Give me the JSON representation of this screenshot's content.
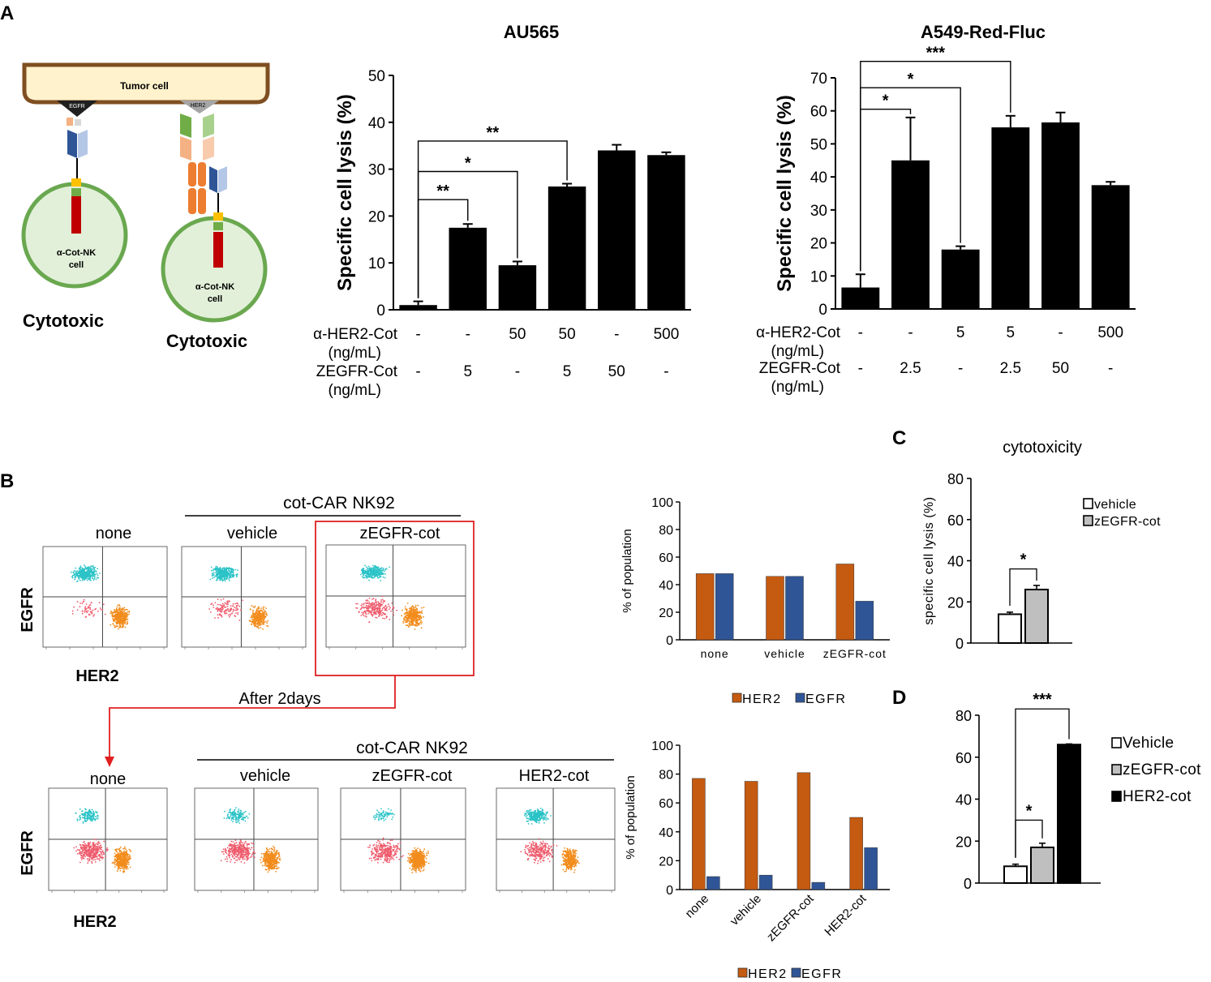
{
  "panels": {
    "A": "A",
    "B": "B",
    "C": "C",
    "D": "D"
  },
  "schematic": {
    "tumor_label": "Tumor cell",
    "egfr_label": "EGFR",
    "her2_label": "HER2",
    "cell_line1": "α-Cot-NK",
    "cell_line2": "cell",
    "cytotoxic": "Cytotoxic"
  },
  "flow": {
    "cot_car": "cot-CAR NK92",
    "none": "none",
    "vehicle": "vehicle",
    "zegfr": "zEGFR-cot",
    "her2cot": "HER2-cot",
    "egfr_axis": "EGFR",
    "her2_axis": "HER2",
    "after": "After 2days"
  },
  "chart_data": [
    {
      "id": "au565",
      "type": "bar",
      "title": "AU565",
      "ylabel": "Specific cell lysis (%)",
      "ylim": [
        0,
        50
      ],
      "yticks": [
        0,
        10,
        20,
        30,
        40,
        50
      ],
      "values": [
        1,
        17.5,
        9.5,
        26.3,
        34,
        33
      ],
      "errors": [
        0.8,
        0.8,
        0.8,
        0.6,
        1.2,
        0.6
      ],
      "row1_label": [
        "α-HER2-Cot",
        "(ng/mL)"
      ],
      "row1": [
        "-",
        "-",
        "50",
        "50",
        "-",
        "500"
      ],
      "row2_label": [
        "ZEGFR-Cot",
        "(ng/mL)"
      ],
      "row2": [
        "-",
        "5",
        "-",
        "5",
        "50",
        "-"
      ],
      "sig": [
        {
          "from": 0,
          "to": 1,
          "label": "**",
          "level": 23.5
        },
        {
          "from": 0,
          "to": 2,
          "label": "*",
          "level": 29.5
        },
        {
          "from": 0,
          "to": 3,
          "label": "**",
          "level": 36
        }
      ]
    },
    {
      "id": "a549",
      "type": "bar",
      "title": "A549-Red-Fluc",
      "ylabel": "Specific cell lysis (%)",
      "ylim": [
        0,
        70
      ],
      "yticks": [
        0,
        10,
        20,
        30,
        40,
        50,
        60,
        70
      ],
      "values": [
        6.5,
        45,
        18,
        55,
        56.5,
        37.5
      ],
      "errors": [
        4,
        13,
        1,
        3.5,
        3,
        1
      ],
      "row1_label": [
        "α-HER2-Cot",
        "(ng/mL)"
      ],
      "row1": [
        "-",
        "-",
        "5",
        "5",
        "-",
        "500"
      ],
      "row2_label": [
        "ZEGFR-Cot",
        "(ng/mL)"
      ],
      "row2": [
        "-",
        "2.5",
        "-",
        "2.5",
        "50",
        "-"
      ],
      "sig": [
        {
          "from": 0,
          "to": 1,
          "label": "*",
          "level": 60.5
        },
        {
          "from": 0,
          "to": 2,
          "label": "*",
          "level": 67
        },
        {
          "from": 0,
          "to": 3,
          "label": "***",
          "level": 75
        }
      ]
    },
    {
      "id": "b_top",
      "type": "bar",
      "title": "",
      "ylabel": "% of population",
      "ylim": [
        0,
        100
      ],
      "yticks": [
        0,
        20,
        40,
        60,
        80,
        100
      ],
      "categories": [
        "none",
        "vehicle",
        "zEGFR-cot"
      ],
      "series": [
        {
          "name": "HER2",
          "color": "#c55a11",
          "values": [
            48,
            46,
            55
          ]
        },
        {
          "name": "EGFR",
          "color": "#2f5597",
          "values": [
            48,
            46,
            28
          ]
        }
      ]
    },
    {
      "id": "b_bottom",
      "type": "bar",
      "title": "",
      "ylabel": "% of population",
      "ylim": [
        0,
        100
      ],
      "yticks": [
        0,
        20,
        40,
        60,
        80,
        100
      ],
      "categories": [
        "none",
        "vehicle",
        "zEGFR-cot",
        "HER2-cot"
      ],
      "series": [
        {
          "name": "HER2",
          "color": "#c55a11",
          "values": [
            77,
            75,
            81,
            50
          ]
        },
        {
          "name": "EGFR",
          "color": "#2f5597",
          "values": [
            9,
            10,
            5,
            29
          ]
        }
      ]
    },
    {
      "id": "c",
      "type": "bar",
      "title": "cytotoxicity",
      "ylabel": "specific cell lysis (%)",
      "ylim": [
        0,
        80
      ],
      "yticks": [
        0,
        20,
        40,
        60,
        80
      ],
      "series": [
        {
          "name": "vehicle",
          "color": "#ffffff",
          "value": 14,
          "error": 1
        },
        {
          "name": "zEGFR-cot",
          "color": "#bfbfbf",
          "value": 26,
          "error": 2
        }
      ],
      "sig": [
        {
          "from": 0,
          "to": 1,
          "label": "*",
          "level": 36
        }
      ]
    },
    {
      "id": "d",
      "type": "bar",
      "title": "",
      "ylabel": "",
      "ylim": [
        0,
        80
      ],
      "yticks": [
        0,
        20,
        40,
        60,
        80
      ],
      "series": [
        {
          "name": "Vehicle",
          "color": "#ffffff",
          "value": 8,
          "error": 1
        },
        {
          "name": "zEGFR-cot",
          "color": "#bfbfbf",
          "value": 17,
          "error": 2
        },
        {
          "name": "HER2-cot",
          "color": "#000000",
          "value": 66,
          "error": 0.3
        }
      ],
      "sig": [
        {
          "from": 0,
          "to": 1,
          "label": "*",
          "level": 30
        },
        {
          "from": 0,
          "to": 2,
          "label": "***",
          "level": 83
        }
      ]
    }
  ]
}
